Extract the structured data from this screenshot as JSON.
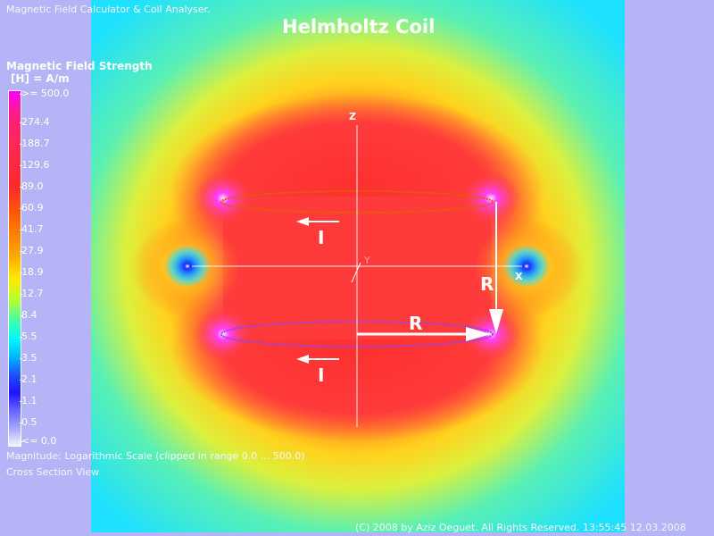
{
  "app_title": "Magnetic Field Calculator & Coil Analyser.",
  "main_title": "Helmholtz Coil",
  "legend": {
    "title": "Magnetic Field Strength",
    "unit": "[H] = A/m",
    "ticks": [
      ">= 500.0",
      "274.4",
      "188.7",
      "129.6",
      "89.0",
      "60.9",
      "41.7",
      "27.9",
      "18.9",
      "12.7",
      "8.4",
      "5.5",
      "3.5",
      "2.1",
      "1.1",
      "0.5",
      "<= 0.0"
    ]
  },
  "footer": {
    "scale": "Magnitude: Logarithmic Scale (clipped in range 0.0  ... 500.0)",
    "view": "Cross Section View",
    "copyright": "(C) 2008 by Aziz Oeguet. All Rights Reserved.  13:55:45  12.03.2008"
  },
  "diagram": {
    "axis_z": "Z",
    "axis_y": "Y",
    "axis_x": "X",
    "label_current_top": "I",
    "label_current_bottom": "I",
    "label_radius_vertical": "R",
    "label_radius_horizontal": "R"
  },
  "colors": {
    "background": "#b4b4f6",
    "field_center": "#ff3434",
    "hotspot": "#ff30ff",
    "outer": "#28e6ff"
  }
}
